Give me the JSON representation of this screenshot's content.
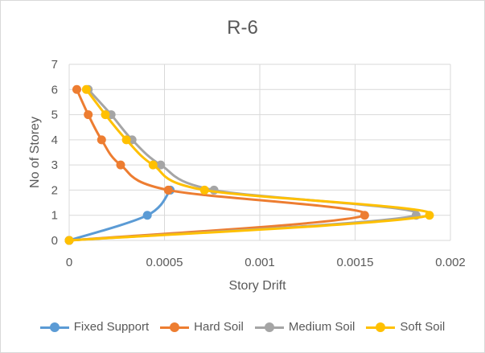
{
  "chart_data": {
    "type": "scatter",
    "title": "R-6",
    "xlabel": "Story Drift",
    "ylabel": "No of Storey",
    "xlim": [
      0,
      0.002
    ],
    "ylim": [
      0,
      7
    ],
    "xticks": [
      "0",
      "0.0005",
      "0.001",
      "0.0015",
      "0.002"
    ],
    "yticks": [
      "0",
      "1",
      "2",
      "3",
      "4",
      "5",
      "6",
      "7"
    ],
    "grid": "horizontal",
    "legend": "bottom",
    "series": [
      {
        "name": "Fixed Support",
        "color": "#5b9bd5",
        "x": [
          0,
          0.00041,
          0.00053
        ],
        "y": [
          0,
          1,
          2
        ]
      },
      {
        "name": "Hard Soil",
        "color": "#ed7d31",
        "x": [
          0,
          0.00155,
          0.00052,
          0.00027,
          0.00017,
          0.0001,
          4e-05
        ],
        "y": [
          0,
          1,
          2,
          3,
          4,
          5,
          6
        ]
      },
      {
        "name": "Medium Soil",
        "color": "#a5a5a5",
        "x": [
          0,
          0.00182,
          0.00076,
          0.00048,
          0.00033,
          0.00022,
          0.0001
        ],
        "y": [
          0,
          1,
          2,
          3,
          4,
          5,
          6
        ]
      },
      {
        "name": "Soft Soil",
        "color": "#ffc000",
        "x": [
          0,
          0.00189,
          0.00071,
          0.00044,
          0.0003,
          0.00019,
          9e-05
        ],
        "y": [
          0,
          1,
          2,
          3,
          4,
          5,
          6
        ]
      }
    ]
  }
}
